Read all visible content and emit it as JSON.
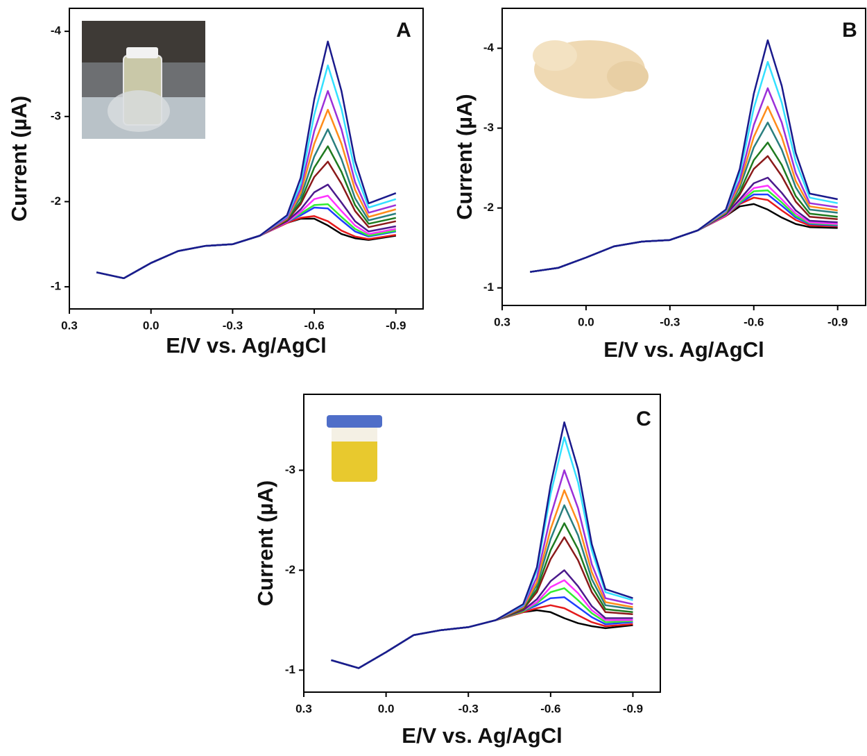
{
  "chart_data": [
    {
      "type": "line",
      "panel_label": "A",
      "xlabel": "E/V vs. Ag/AgCl",
      "ylabel": "Current (µA)",
      "xlim": [
        0.3,
        -1.0
      ],
      "ylim": [
        -0.74,
        -4.27
      ],
      "xticks": [
        0.3,
        {
          "value": 0,
          "label": "0.0"
        },
        -0.3,
        -0.6,
        -0.9
      ],
      "yticks": [
        -1,
        -2,
        -3,
        -4
      ],
      "grid": false,
      "x": [
        0.2,
        0.1,
        0.0,
        -0.1,
        -0.2,
        -0.3,
        -0.4,
        -0.5,
        -0.55,
        -0.6,
        -0.65,
        -0.7,
        -0.75,
        -0.8,
        -0.9
      ],
      "series": [
        {
          "color": "#000000",
          "values": [
            -1.17,
            -1.1,
            -1.28,
            -1.42,
            -1.48,
            -1.5,
            -1.6,
            -1.75,
            -1.8,
            -1.8,
            -1.72,
            -1.62,
            -1.57,
            -1.55,
            -1.6
          ]
        },
        {
          "color": "#e41a1c",
          "values": [
            -1.17,
            -1.1,
            -1.28,
            -1.42,
            -1.48,
            -1.5,
            -1.6,
            -1.75,
            -1.81,
            -1.83,
            -1.77,
            -1.66,
            -1.59,
            -1.56,
            -1.61
          ]
        },
        {
          "color": "#1f3fff",
          "values": [
            -1.17,
            -1.1,
            -1.28,
            -1.42,
            -1.48,
            -1.5,
            -1.6,
            -1.76,
            -1.84,
            -1.93,
            -1.92,
            -1.78,
            -1.65,
            -1.59,
            -1.65
          ]
        },
        {
          "color": "#33ee33",
          "values": [
            -1.17,
            -1.1,
            -1.28,
            -1.42,
            -1.48,
            -1.5,
            -1.6,
            -1.76,
            -1.86,
            -1.96,
            -1.97,
            -1.82,
            -1.68,
            -1.6,
            -1.66
          ]
        },
        {
          "color": "#ff33ff",
          "values": [
            -1.17,
            -1.1,
            -1.28,
            -1.42,
            -1.48,
            -1.5,
            -1.6,
            -1.76,
            -1.88,
            -2.03,
            -2.07,
            -1.89,
            -1.72,
            -1.62,
            -1.68
          ]
        },
        {
          "color": "#4b1a8c",
          "values": [
            -1.17,
            -1.1,
            -1.28,
            -1.42,
            -1.48,
            -1.5,
            -1.6,
            -1.77,
            -1.91,
            -2.11,
            -2.2,
            -1.99,
            -1.77,
            -1.65,
            -1.71
          ]
        },
        {
          "color": "#8b1a1a",
          "values": [
            -1.17,
            -1.1,
            -1.28,
            -1.42,
            -1.48,
            -1.5,
            -1.6,
            -1.78,
            -1.97,
            -2.29,
            -2.47,
            -2.21,
            -1.89,
            -1.7,
            -1.77
          ]
        },
        {
          "color": "#1f7a1f",
          "values": [
            -1.17,
            -1.1,
            -1.28,
            -1.42,
            -1.48,
            -1.5,
            -1.6,
            -1.79,
            -2.0,
            -2.4,
            -2.65,
            -2.35,
            -1.96,
            -1.74,
            -1.81
          ]
        },
        {
          "color": "#2a7f7f",
          "values": [
            -1.17,
            -1.1,
            -1.28,
            -1.42,
            -1.48,
            -1.5,
            -1.6,
            -1.8,
            -2.05,
            -2.53,
            -2.85,
            -2.5,
            -2.04,
            -1.78,
            -1.86
          ]
        },
        {
          "color": "#ff8c1a",
          "values": [
            -1.17,
            -1.1,
            -1.28,
            -1.42,
            -1.48,
            -1.5,
            -1.6,
            -1.8,
            -2.1,
            -2.68,
            -3.08,
            -2.68,
            -2.14,
            -1.82,
            -1.91
          ]
        },
        {
          "color": "#9b30d9",
          "values": [
            -1.17,
            -1.1,
            -1.28,
            -1.42,
            -1.48,
            -1.5,
            -1.6,
            -1.81,
            -2.15,
            -2.83,
            -3.3,
            -2.85,
            -2.23,
            -1.87,
            -1.96
          ]
        },
        {
          "color": "#33e0ff",
          "values": [
            -1.17,
            -1.1,
            -1.28,
            -1.42,
            -1.48,
            -1.5,
            -1.6,
            -1.83,
            -2.21,
            -3.02,
            -3.6,
            -3.09,
            -2.36,
            -1.93,
            -2.03
          ]
        },
        {
          "color": "#1a1a8c",
          "values": [
            -1.17,
            -1.1,
            -1.28,
            -1.42,
            -1.48,
            -1.5,
            -1.6,
            -1.84,
            -2.28,
            -3.2,
            -3.88,
            -3.3,
            -2.48,
            -1.98,
            -2.1
          ]
        }
      ]
    },
    {
      "type": "line",
      "panel_label": "B",
      "xlabel": "E/V vs. Ag/AgCl",
      "ylabel": "Current (µA)",
      "xlim": [
        0.3,
        -1.0
      ],
      "ylim": [
        -0.78,
        -4.5
      ],
      "xticks": [
        0.3,
        {
          "value": 0,
          "label": "0.0"
        },
        -0.3,
        -0.6,
        -0.9
      ],
      "yticks": [
        -1,
        -2,
        -3,
        -4
      ],
      "grid": false,
      "x": [
        0.2,
        0.1,
        0.0,
        -0.1,
        -0.2,
        -0.3,
        -0.4,
        -0.5,
        -0.55,
        -0.6,
        -0.65,
        -0.7,
        -0.75,
        -0.8,
        -0.9
      ],
      "series": [
        {
          "color": "#000000",
          "values": [
            -1.2,
            -1.25,
            -1.38,
            -1.52,
            -1.58,
            -1.6,
            -1.72,
            -1.9,
            -2.02,
            -2.05,
            -1.98,
            -1.88,
            -1.8,
            -1.76,
            -1.75
          ]
        },
        {
          "color": "#e41a1c",
          "values": [
            -1.2,
            -1.25,
            -1.38,
            -1.52,
            -1.58,
            -1.6,
            -1.72,
            -1.9,
            -2.05,
            -2.13,
            -2.1,
            -1.97,
            -1.85,
            -1.78,
            -1.77
          ]
        },
        {
          "color": "#1f3fff",
          "values": [
            -1.2,
            -1.25,
            -1.38,
            -1.52,
            -1.58,
            -1.6,
            -1.72,
            -1.91,
            -2.06,
            -2.17,
            -2.17,
            -2.03,
            -1.88,
            -1.8,
            -1.78
          ]
        },
        {
          "color": "#33ee33",
          "values": [
            -1.2,
            -1.25,
            -1.38,
            -1.52,
            -1.58,
            -1.6,
            -1.72,
            -1.91,
            -2.07,
            -2.21,
            -2.22,
            -2.07,
            -1.9,
            -1.81,
            -1.79
          ]
        },
        {
          "color": "#ff33ff",
          "values": [
            -1.2,
            -1.25,
            -1.38,
            -1.52,
            -1.58,
            -1.6,
            -1.72,
            -1.91,
            -2.09,
            -2.25,
            -2.28,
            -2.11,
            -1.93,
            -1.82,
            -1.8
          ]
        },
        {
          "color": "#4b1a8c",
          "values": [
            -1.2,
            -1.25,
            -1.38,
            -1.52,
            -1.58,
            -1.6,
            -1.72,
            -1.92,
            -2.11,
            -2.31,
            -2.38,
            -2.19,
            -1.97,
            -1.84,
            -1.82
          ]
        },
        {
          "color": "#8b1a1a",
          "values": [
            -1.2,
            -1.25,
            -1.38,
            -1.52,
            -1.58,
            -1.6,
            -1.72,
            -1.93,
            -2.17,
            -2.49,
            -2.65,
            -2.4,
            -2.08,
            -1.89,
            -1.86
          ]
        },
        {
          "color": "#1f7a1f",
          "values": [
            -1.2,
            -1.25,
            -1.38,
            -1.52,
            -1.58,
            -1.6,
            -1.72,
            -1.93,
            -2.2,
            -2.6,
            -2.82,
            -2.54,
            -2.15,
            -1.93,
            -1.89
          ]
        },
        {
          "color": "#2a7f7f",
          "values": [
            -1.2,
            -1.25,
            -1.38,
            -1.52,
            -1.58,
            -1.6,
            -1.72,
            -1.94,
            -2.26,
            -2.76,
            -3.07,
            -2.73,
            -2.26,
            -1.98,
            -1.94
          ]
        },
        {
          "color": "#ff8c1a",
          "values": [
            -1.2,
            -1.25,
            -1.38,
            -1.52,
            -1.58,
            -1.6,
            -1.72,
            -1.95,
            -2.3,
            -2.89,
            -3.27,
            -2.89,
            -2.34,
            -2.02,
            -1.97
          ]
        },
        {
          "color": "#9b30d9",
          "values": [
            -1.2,
            -1.25,
            -1.38,
            -1.52,
            -1.58,
            -1.6,
            -1.72,
            -1.96,
            -2.35,
            -3.04,
            -3.5,
            -3.07,
            -2.44,
            -2.06,
            -2.01
          ]
        },
        {
          "color": "#33e0ff",
          "values": [
            -1.2,
            -1.25,
            -1.38,
            -1.52,
            -1.58,
            -1.6,
            -1.72,
            -1.97,
            -2.43,
            -3.25,
            -3.83,
            -3.32,
            -2.58,
            -2.13,
            -2.06
          ]
        },
        {
          "color": "#1a1a8c",
          "values": [
            -1.2,
            -1.25,
            -1.38,
            -1.52,
            -1.58,
            -1.6,
            -1.72,
            -1.98,
            -2.49,
            -3.43,
            -4.1,
            -3.53,
            -2.69,
            -2.18,
            -2.11
          ]
        }
      ]
    },
    {
      "type": "line",
      "panel_label": "C",
      "xlabel": "E/V vs. Ag/AgCl",
      "ylabel": "Current (µA)",
      "xlim": [
        0.3,
        -1.0
      ],
      "ylim": [
        -0.78,
        -3.76
      ],
      "xticks": [
        0.3,
        {
          "value": 0,
          "label": "0.0"
        },
        -0.3,
        -0.6,
        -0.9
      ],
      "yticks": [
        -1,
        -2,
        -3
      ],
      "grid": false,
      "x": [
        0.2,
        0.1,
        0.0,
        -0.1,
        -0.2,
        -0.3,
        -0.4,
        -0.5,
        -0.55,
        -0.6,
        -0.65,
        -0.7,
        -0.75,
        -0.8,
        -0.9
      ],
      "series": [
        {
          "color": "#000000",
          "values": [
            -1.1,
            -1.02,
            -1.18,
            -1.35,
            -1.4,
            -1.43,
            -1.5,
            -1.58,
            -1.6,
            -1.58,
            -1.52,
            -1.47,
            -1.44,
            -1.42,
            -1.45
          ]
        },
        {
          "color": "#e41a1c",
          "values": [
            -1.1,
            -1.02,
            -1.18,
            -1.35,
            -1.4,
            -1.43,
            -1.5,
            -1.58,
            -1.62,
            -1.65,
            -1.62,
            -1.55,
            -1.48,
            -1.44,
            -1.46
          ]
        },
        {
          "color": "#1f3fff",
          "values": [
            -1.1,
            -1.02,
            -1.18,
            -1.35,
            -1.4,
            -1.43,
            -1.5,
            -1.59,
            -1.65,
            -1.72,
            -1.73,
            -1.63,
            -1.53,
            -1.46,
            -1.48
          ]
        },
        {
          "color": "#33ee33",
          "values": [
            -1.1,
            -1.02,
            -1.18,
            -1.35,
            -1.4,
            -1.43,
            -1.5,
            -1.59,
            -1.67,
            -1.78,
            -1.82,
            -1.7,
            -1.57,
            -1.48,
            -1.49
          ]
        },
        {
          "color": "#ff33ff",
          "values": [
            -1.1,
            -1.02,
            -1.18,
            -1.35,
            -1.4,
            -1.43,
            -1.5,
            -1.6,
            -1.68,
            -1.83,
            -1.9,
            -1.77,
            -1.6,
            -1.5,
            -1.5
          ]
        },
        {
          "color": "#4b1a8c",
          "values": [
            -1.1,
            -1.02,
            -1.18,
            -1.35,
            -1.4,
            -1.43,
            -1.5,
            -1.6,
            -1.71,
            -1.89,
            -2.0,
            -1.84,
            -1.64,
            -1.52,
            -1.52
          ]
        },
        {
          "color": "#8b1a1a",
          "values": [
            -1.1,
            -1.02,
            -1.18,
            -1.35,
            -1.4,
            -1.43,
            -1.5,
            -1.61,
            -1.78,
            -2.11,
            -2.33,
            -2.1,
            -1.78,
            -1.58,
            -1.56
          ]
        },
        {
          "color": "#1f7a1f",
          "values": [
            -1.1,
            -1.02,
            -1.18,
            -1.35,
            -1.4,
            -1.43,
            -1.5,
            -1.62,
            -1.81,
            -2.2,
            -2.47,
            -2.21,
            -1.84,
            -1.61,
            -1.58
          ]
        },
        {
          "color": "#2a7f7f",
          "values": [
            -1.1,
            -1.02,
            -1.18,
            -1.35,
            -1.4,
            -1.43,
            -1.5,
            -1.63,
            -1.85,
            -2.31,
            -2.65,
            -2.35,
            -1.91,
            -1.65,
            -1.61
          ]
        },
        {
          "color": "#ff8c1a",
          "values": [
            -1.1,
            -1.02,
            -1.18,
            -1.35,
            -1.4,
            -1.43,
            -1.5,
            -1.63,
            -1.88,
            -2.41,
            -2.8,
            -2.47,
            -1.98,
            -1.68,
            -1.63
          ]
        },
        {
          "color": "#9b30d9",
          "values": [
            -1.1,
            -1.02,
            -1.18,
            -1.35,
            -1.4,
            -1.43,
            -1.5,
            -1.64,
            -1.93,
            -2.54,
            -3.0,
            -2.62,
            -2.06,
            -1.72,
            -1.66
          ]
        },
        {
          "color": "#33e0ff",
          "values": [
            -1.1,
            -1.02,
            -1.18,
            -1.35,
            -1.4,
            -1.43,
            -1.5,
            -1.65,
            -2.0,
            -2.76,
            -3.33,
            -2.88,
            -2.2,
            -1.78,
            -1.7
          ]
        },
        {
          "color": "#1a1a8c",
          "values": [
            -1.1,
            -1.02,
            -1.18,
            -1.35,
            -1.4,
            -1.43,
            -1.5,
            -1.66,
            -2.03,
            -2.85,
            -3.48,
            -3.01,
            -2.26,
            -1.81,
            -1.72
          ]
        }
      ]
    }
  ]
}
